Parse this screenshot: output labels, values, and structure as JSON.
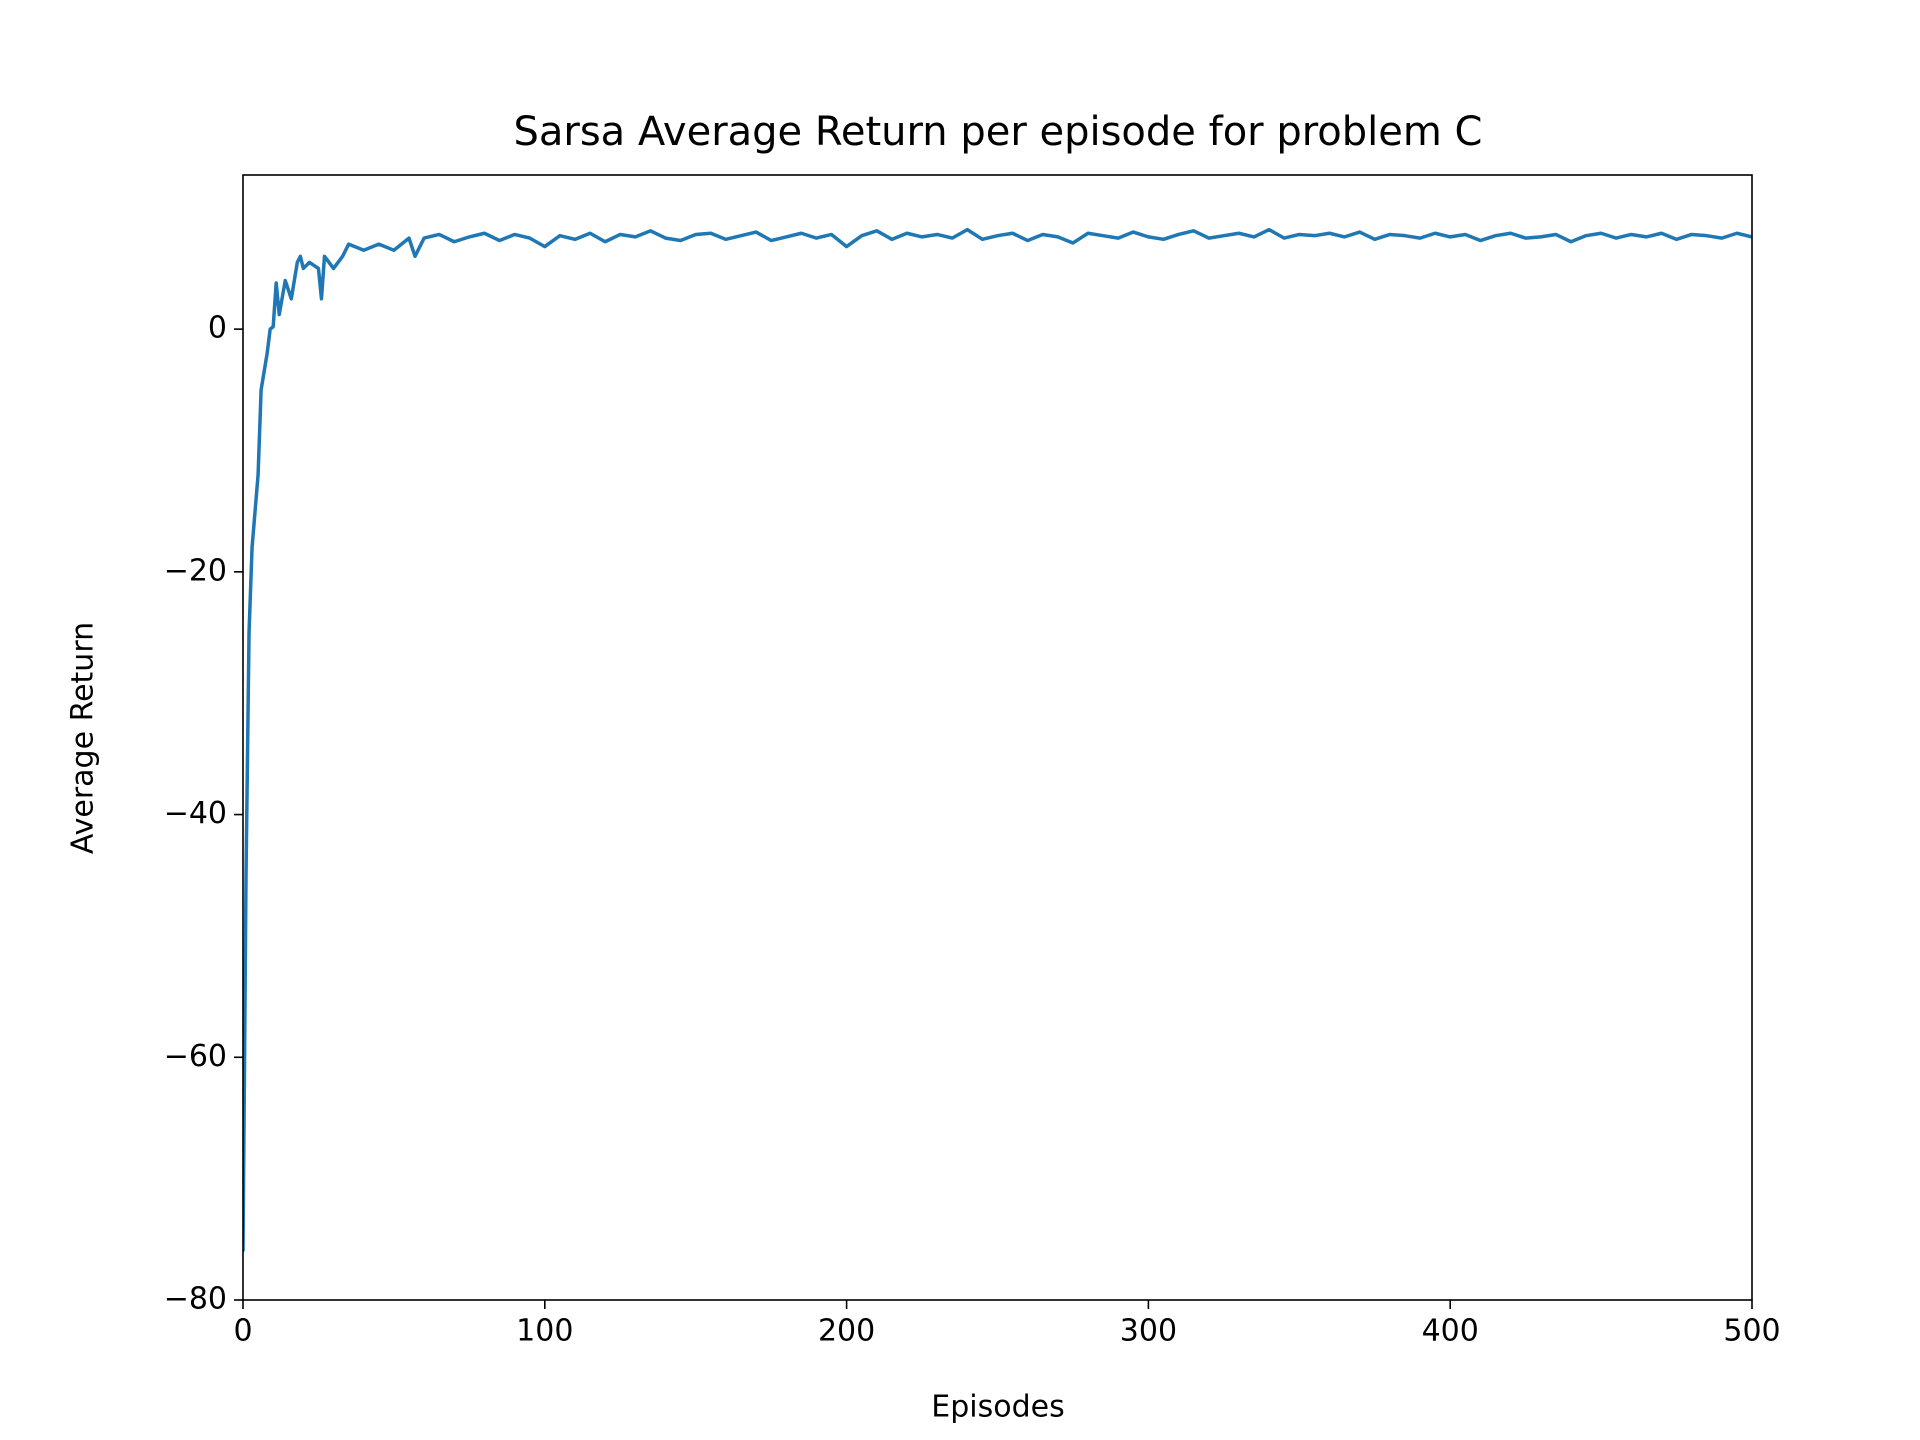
{
  "chart_data": {
    "type": "line",
    "title": "Sarsa Average Return per episode for problem C",
    "xlabel": "Episodes",
    "ylabel": "Average Return",
    "x": [
      0,
      1,
      2,
      3,
      5,
      6,
      8,
      9,
      10,
      11,
      12,
      14,
      16,
      18,
      19,
      20,
      22,
      25,
      26,
      27,
      30,
      33,
      35,
      40,
      45,
      50,
      55,
      57,
      60,
      65,
      70,
      75,
      80,
      85,
      90,
      95,
      100,
      105,
      110,
      115,
      120,
      125,
      130,
      135,
      140,
      145,
      150,
      155,
      160,
      165,
      170,
      175,
      180,
      185,
      190,
      195,
      200,
      205,
      210,
      215,
      220,
      225,
      230,
      235,
      240,
      245,
      250,
      255,
      260,
      265,
      270,
      275,
      280,
      285,
      290,
      295,
      300,
      305,
      310,
      315,
      320,
      325,
      330,
      335,
      340,
      345,
      350,
      355,
      360,
      365,
      370,
      375,
      380,
      385,
      390,
      395,
      400,
      405,
      410,
      415,
      420,
      425,
      430,
      435,
      440,
      445,
      450,
      455,
      460,
      465,
      470,
      475,
      480,
      485,
      490,
      495,
      500
    ],
    "series": [
      {
        "name": "Sarsa",
        "color": "#1f77b4",
        "values": [
          -76,
          -45,
          -25,
          -18,
          -12,
          -5,
          -2,
          0,
          0.2,
          3.8,
          1.2,
          4,
          2.5,
          5.5,
          6,
          5,
          5.5,
          5,
          2.5,
          6,
          5,
          6,
          7,
          6.5,
          7,
          6.5,
          7.5,
          6,
          7.5,
          7.8,
          7.2,
          7.6,
          7.9,
          7.3,
          7.8,
          7.5,
          6.8,
          7.7,
          7.4,
          7.9,
          7.2,
          7.8,
          7.6,
          8.1,
          7.5,
          7.3,
          7.8,
          7.9,
          7.4,
          7.7,
          8,
          7.3,
          7.6,
          7.9,
          7.5,
          7.8,
          6.8,
          7.7,
          8.1,
          7.4,
          7.9,
          7.6,
          7.8,
          7.5,
          8.2,
          7.4,
          7.7,
          7.9,
          7.3,
          7.8,
          7.6,
          7.1,
          7.9,
          7.7,
          7.5,
          8,
          7.6,
          7.4,
          7.8,
          8.1,
          7.5,
          7.7,
          7.9,
          7.6,
          8.2,
          7.5,
          7.8,
          7.7,
          7.9,
          7.6,
          8,
          7.4,
          7.8,
          7.7,
          7.5,
          7.9,
          7.6,
          7.8,
          7.3,
          7.7,
          7.9,
          7.5,
          7.6,
          7.8,
          7.2,
          7.7,
          7.9,
          7.5,
          7.8,
          7.6,
          7.9,
          7.4,
          7.8,
          7.7,
          7.5,
          7.9,
          7.6
        ]
      }
    ],
    "xlim": [
      0,
      500
    ],
    "ylim": [
      -80,
      12.7
    ],
    "xticks": [
      0,
      100,
      200,
      300,
      400,
      500
    ],
    "yticks": [
      {
        "value": -80,
        "label": "−80"
      },
      {
        "value": -60,
        "label": "−60"
      },
      {
        "value": -40,
        "label": "−40"
      },
      {
        "value": -20,
        "label": "−20"
      },
      0
    ],
    "grid": false
  }
}
